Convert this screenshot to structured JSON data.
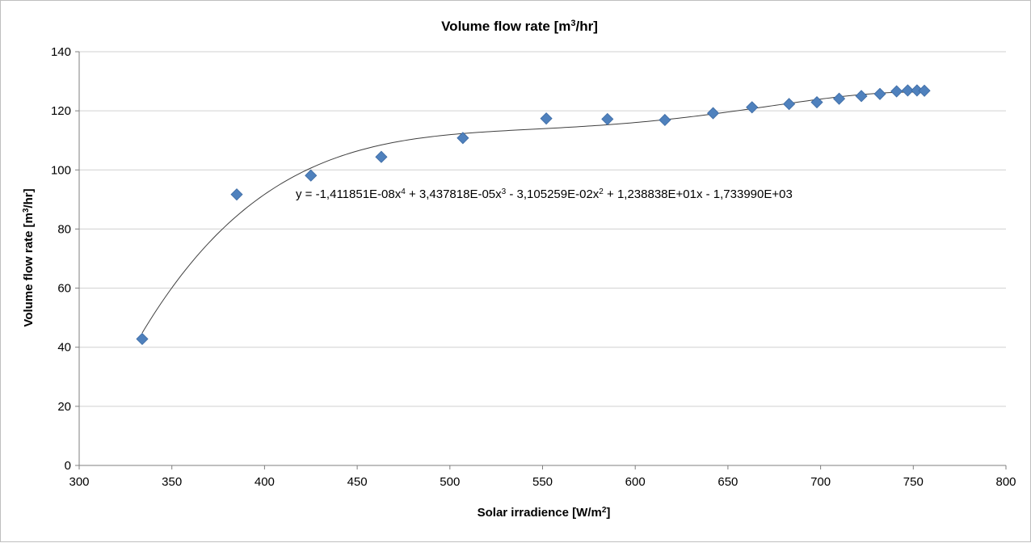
{
  "chart_data": {
    "type": "scatter",
    "title": {
      "main": "Volume flow rate [m",
      "sup": "3",
      "rest": "/hr]"
    },
    "xlabel": {
      "main": "Solar irradience [W/m",
      "sup": "2",
      "rest": "]"
    },
    "ylabel": {
      "main": "Volume flow rate [m",
      "sup": "3",
      "rest": "/hr]"
    },
    "xlim": [
      300,
      800
    ],
    "ylim": [
      0,
      140
    ],
    "x_ticks": [
      300,
      350,
      400,
      450,
      500,
      550,
      600,
      650,
      700,
      750,
      800
    ],
    "y_ticks": [
      0,
      20,
      40,
      60,
      80,
      100,
      120,
      140
    ],
    "grid": "horizontal",
    "legend": "none",
    "marker_color": "#4f81bd",
    "trendline_color": "#3f3f3f",
    "series": [
      {
        "x": [
          334,
          385,
          425,
          463,
          507,
          552,
          585,
          616,
          642,
          663,
          683,
          698,
          710,
          722,
          732,
          741,
          747,
          752,
          756
        ],
        "y": [
          42.8,
          91.7,
          98.1,
          104.4,
          110.8,
          117.4,
          117.2,
          116.9,
          119.2,
          121.2,
          122.3,
          122.9,
          124.1,
          125.0,
          125.7,
          126.6,
          126.9,
          126.9,
          126.8
        ]
      }
    ],
    "trendline": {
      "type": "polynomial",
      "order": 4,
      "coefficients": [
        -1.411851e-08,
        3.437818e-05,
        -0.03105259,
        12.38838,
        -1733.99
      ],
      "x_range": [
        334,
        756
      ],
      "equation_parts": [
        {
          "t": "y = -1,411851E-08x"
        },
        {
          "sup": "4"
        },
        {
          "t": " + 3,437818E-05x"
        },
        {
          "sup": "3"
        },
        {
          "t": " - 3,105259E-02x"
        },
        {
          "sup": "2"
        },
        {
          "t": " + 1,238838E+01x - 1,733990E+03"
        }
      ]
    }
  }
}
